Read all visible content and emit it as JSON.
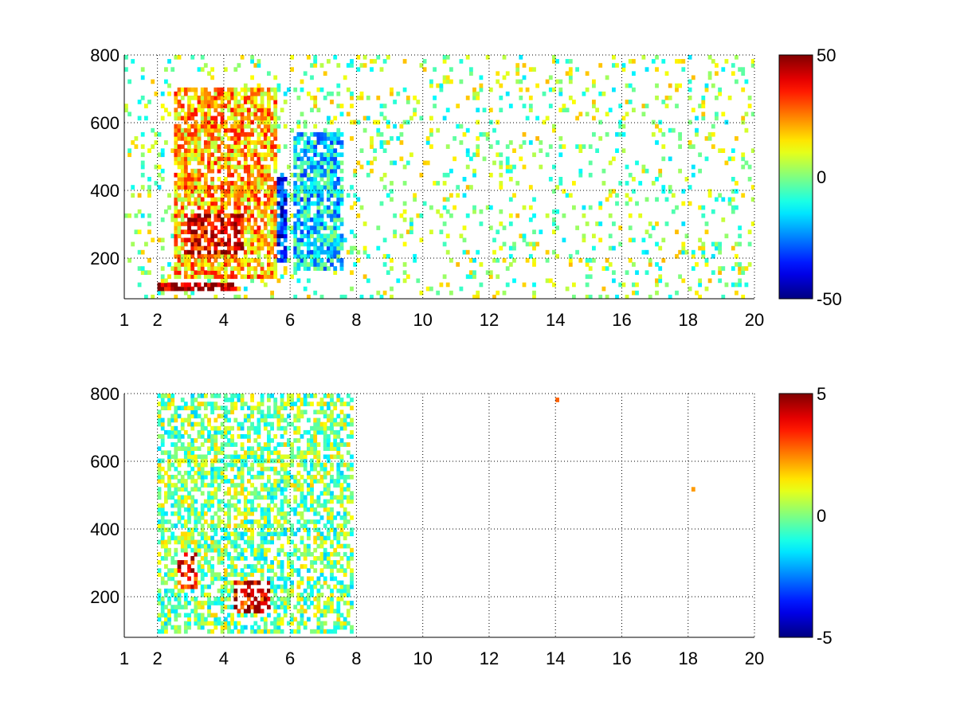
{
  "chart_data": [
    {
      "type": "heatmap",
      "title": "",
      "xlabel": "",
      "ylabel": "",
      "xlim": [
        1,
        20
      ],
      "ylim": [
        80,
        800
      ],
      "x_ticks": [
        1,
        2,
        4,
        6,
        8,
        10,
        12,
        14,
        16,
        18,
        20
      ],
      "y_ticks": [
        200,
        400,
        600,
        800
      ],
      "grid": true,
      "colormap": "jet",
      "colorbar": {
        "min": -50,
        "max": 50,
        "ticks": [
          50,
          0,
          -50
        ],
        "position": "right"
      },
      "features": [
        {
          "description_value_note": "strong positive",
          "x_range": [
            2.8,
            4.6
          ],
          "y_range": [
            210,
            330
          ],
          "value": 40
        },
        {
          "description_value_note": "strong positive",
          "x_range": [
            2.0,
            4.4
          ],
          "y_range": [
            95,
            125
          ],
          "value": 45
        },
        {
          "description_value_note": "positive",
          "x_range": [
            2.5,
            5.5
          ],
          "y_range": [
            140,
            700
          ],
          "value": 20
        },
        {
          "description_value_note": "negative",
          "x_range": [
            4.5,
            5.8
          ],
          "y_range": [
            180,
            450
          ],
          "value": -35
        },
        {
          "description_value_note": "weak negative",
          "x_range": [
            6.0,
            7.5
          ],
          "y_range": [
            160,
            560
          ],
          "value": -15
        },
        {
          "description_value_note": "weak positive scatter",
          "x_range": [
            1.0,
            20.0
          ],
          "y_range": [
            80,
            800
          ],
          "value": 2
        }
      ]
    },
    {
      "type": "heatmap",
      "title": "",
      "xlabel": "",
      "ylabel": "",
      "xlim": [
        1,
        20
      ],
      "ylim": [
        80,
        800
      ],
      "x_ticks": [
        1,
        2,
        4,
        6,
        8,
        10,
        12,
        14,
        16,
        18,
        20
      ],
      "y_ticks": [
        200,
        400,
        600,
        800
      ],
      "grid": true,
      "colormap": "jet",
      "colorbar": {
        "min": -5,
        "max": 5,
        "ticks": [
          5,
          0,
          -5
        ],
        "position": "right"
      },
      "features": [
        {
          "description_value_note": "positive",
          "x_range": [
            4.3,
            5.3
          ],
          "y_range": [
            150,
            240
          ],
          "value": 4
        },
        {
          "description_value_note": "positive",
          "x_range": [
            2.6,
            3.2
          ],
          "y_range": [
            220,
            330
          ],
          "value": 4
        },
        {
          "description_value_note": "mixed",
          "x_range": [
            2.0,
            7.8
          ],
          "y_range": [
            90,
            790
          ],
          "value": 0
        },
        {
          "description_value_note": "isolated",
          "x_range": [
            13.9,
            14.0
          ],
          "y_range": [
            760,
            780
          ],
          "value": 2
        },
        {
          "description_value_note": "isolated",
          "x_range": [
            18.0,
            18.1
          ],
          "y_range": [
            505,
            515
          ],
          "value": 1
        }
      ]
    }
  ]
}
